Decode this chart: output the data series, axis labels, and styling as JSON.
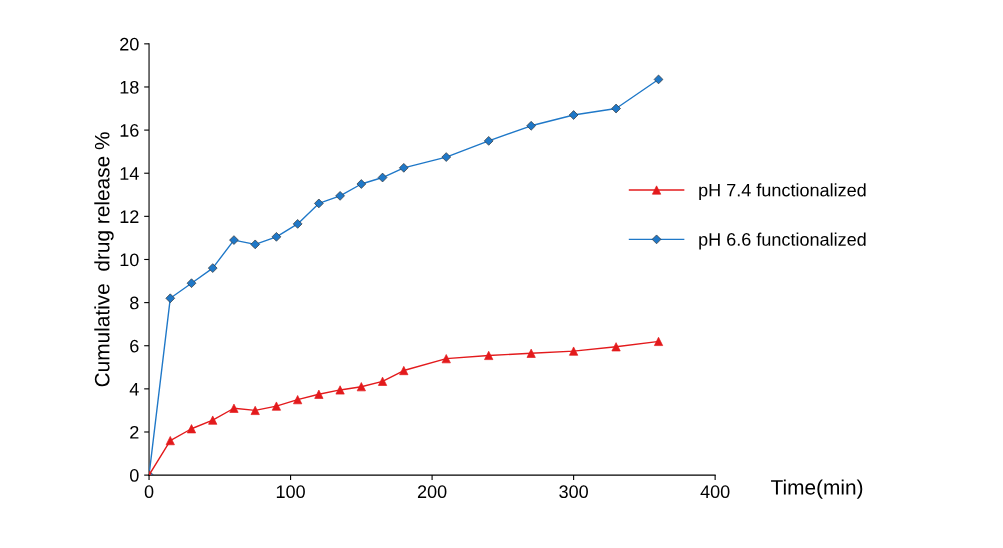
{
  "chart_data": {
    "type": "line",
    "xlabel": "Time(min)",
    "ylabel": "Cumulative  drug release %",
    "x": [
      0,
      15,
      30,
      45,
      60,
      75,
      90,
      105,
      120,
      135,
      150,
      165,
      180,
      210,
      240,
      270,
      300,
      330,
      360
    ],
    "series": [
      {
        "name": "pH 7.4 functionalized",
        "color": "#e31a1c",
        "marker": "triangle",
        "values": [
          0,
          1.6,
          2.15,
          2.55,
          3.1,
          3.0,
          3.2,
          3.5,
          3.75,
          3.95,
          4.1,
          4.35,
          4.85,
          5.4,
          5.55,
          5.65,
          5.75,
          5.95,
          6.2
        ]
      },
      {
        "name": "pH 6.6 functionalized",
        "color": "#1f78c8",
        "marker": "diamond",
        "values": [
          0,
          8.2,
          8.9,
          9.6,
          10.9,
          10.7,
          11.05,
          11.65,
          12.6,
          12.95,
          13.5,
          13.8,
          14.25,
          14.75,
          15.5,
          16.2,
          16.7,
          17.0,
          18.35
        ]
      }
    ],
    "xlim": [
      0,
      400
    ],
    "xticks": [
      0,
      100,
      200,
      300,
      400
    ],
    "ylim": [
      0,
      20
    ],
    "yticks": [
      0,
      2,
      4,
      6,
      8,
      10,
      12,
      14,
      16,
      18,
      20
    ],
    "grid": false,
    "legend": "right",
    "line_style": "solid"
  }
}
